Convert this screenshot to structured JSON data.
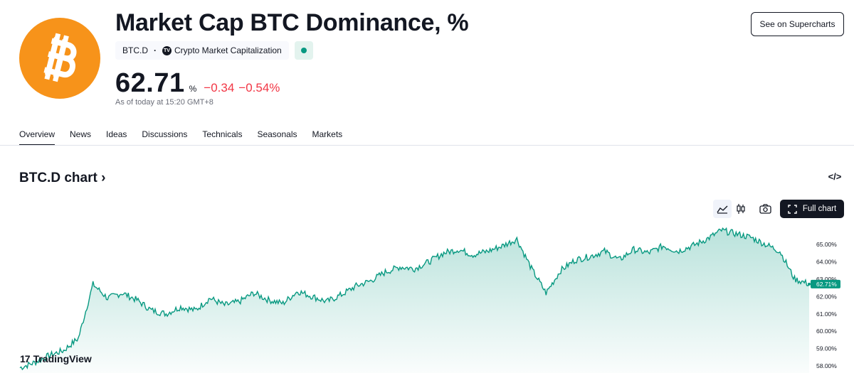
{
  "header": {
    "title": "Market Cap BTC Dominance, %",
    "ticker": "BTC.D",
    "separator": "·",
    "source": "Crypto Market Capitalization",
    "source_logo_text": "TV",
    "see_button": "See on Supercharts",
    "logo_icon": "bitcoin-icon",
    "brand_color": "#f7931a"
  },
  "price": {
    "value": "62.71",
    "unit": "%",
    "change": "−0.34",
    "change_pct": "−0.54%",
    "as_of": "As of today at 15:20 GMT+8",
    "change_color": "#f23645"
  },
  "tabs": [
    {
      "label": "Overview",
      "active": true
    },
    {
      "label": "News"
    },
    {
      "label": "Ideas"
    },
    {
      "label": "Discussions"
    },
    {
      "label": "Technicals"
    },
    {
      "label": "Seasonals"
    },
    {
      "label": "Markets"
    }
  ],
  "chart_section": {
    "title": "BTC.D chart",
    "title_chevron": "›",
    "embed_icon": "</>",
    "full_chart_label": "Full chart",
    "icons": [
      "area-chart-icon",
      "candlestick-icon",
      "camera-icon",
      "fullscreen-icon"
    ],
    "watermark": "TradingView",
    "watermark_mark": "17"
  },
  "chart_data": {
    "type": "area",
    "ylim": [
      57.6,
      66.3
    ],
    "yticks": [
      "65.00%",
      "64.00%",
      "63.00%",
      "62.00%",
      "61.00%",
      "60.00%",
      "59.00%",
      "58.00%"
    ],
    "last_value_label": "62.71%",
    "line_color": "#089981",
    "grid": false,
    "y": [
      57.9,
      58.2,
      58.6,
      58.9,
      59.6,
      62.7,
      61.9,
      62.2,
      61.8,
      61.2,
      61.0,
      61.4,
      61.2,
      61.9,
      61.5,
      61.7,
      62.2,
      61.8,
      61.6,
      62.3,
      62.0,
      61.7,
      62.1,
      62.6,
      62.9,
      63.4,
      63.7,
      63.6,
      64.0,
      64.5,
      64.7,
      64.4,
      64.6,
      64.9,
      65.3,
      63.6,
      62.2,
      63.5,
      64.1,
      64.3,
      64.6,
      64.1,
      64.7,
      64.5,
      64.9,
      64.6,
      64.9,
      65.3,
      65.8,
      65.6,
      65.4,
      65.0,
      64.6,
      63.0,
      62.71
    ]
  }
}
